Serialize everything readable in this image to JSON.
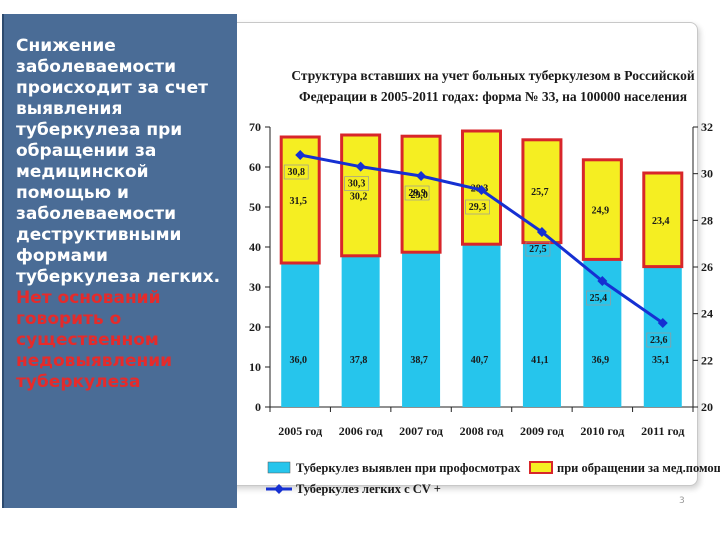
{
  "side_text": {
    "white": "Снижение заболеваемости происходит за счет выявления туберкулеза при обращении за медицинской помощью и заболеваемости деструктивными формами туберкулеза легких.",
    "red": "Нет оснований говорить о существенном недовыявлении туберкулеза"
  },
  "slide_number": "3",
  "colors": {
    "panel": "#4a6c96",
    "bar_profosmotr": "#26c5ec",
    "bar_obrashenie": "#f5ee22",
    "bar_outline": "#d8262a",
    "line": "#1530d2"
  },
  "chart_data": {
    "type": "bar",
    "stacked": true,
    "title": "Структура вставших на учет больных туберкулезом в Российской Федерации в 2005-2011 годах: форма № 33, на 100000 населения",
    "title_lines": [
      "Структура вставших на учет больных туберкулезом в Российской",
      "Федерации в 2005-2011 годах: форма № 33, на 100000  населения"
    ],
    "categories": [
      "2005 год",
      "2006 год",
      "2007 год",
      "2008 год",
      "2009 год",
      "2010 год",
      "2011 год"
    ],
    "series": [
      {
        "name": "Туберкулез выявлен при профосмотрах",
        "type": "bar",
        "axis": "left",
        "values": [
          36.0,
          37.8,
          38.7,
          40.7,
          41.1,
          36.9,
          35.1
        ],
        "labels": [
          "36,0",
          "37,8",
          "38,7",
          "40,7",
          "41,1",
          "36,9",
          "35,1"
        ]
      },
      {
        "name": "при обращении за мед.помощью",
        "type": "bar",
        "axis": "left",
        "values": [
          31.5,
          30.2,
          29.0,
          28.3,
          25.7,
          24.9,
          23.4
        ],
        "labels": [
          "31,5",
          "30,2",
          "29,0",
          "28,3",
          "25,7",
          "24,9",
          "23,4"
        ]
      },
      {
        "name": "Туберкулез легких с CV +",
        "type": "line",
        "axis": "right",
        "values": [
          30.8,
          30.3,
          29.9,
          29.3,
          27.5,
          25.4,
          23.6
        ],
        "labels": [
          "30,8",
          "30,3",
          "29,9",
          "29,3",
          "27,5",
          "25,4",
          "23,6"
        ]
      }
    ],
    "y_left": {
      "min": 0,
      "max": 70,
      "ticks": [
        "0",
        "10",
        "20",
        "30",
        "40",
        "50",
        "60",
        "70"
      ]
    },
    "y_right": {
      "min": 20,
      "max": 32,
      "ticks": [
        "20",
        "22",
        "24",
        "26",
        "28",
        "30",
        "32"
      ]
    },
    "grid": false,
    "legend_position": "bottom"
  }
}
